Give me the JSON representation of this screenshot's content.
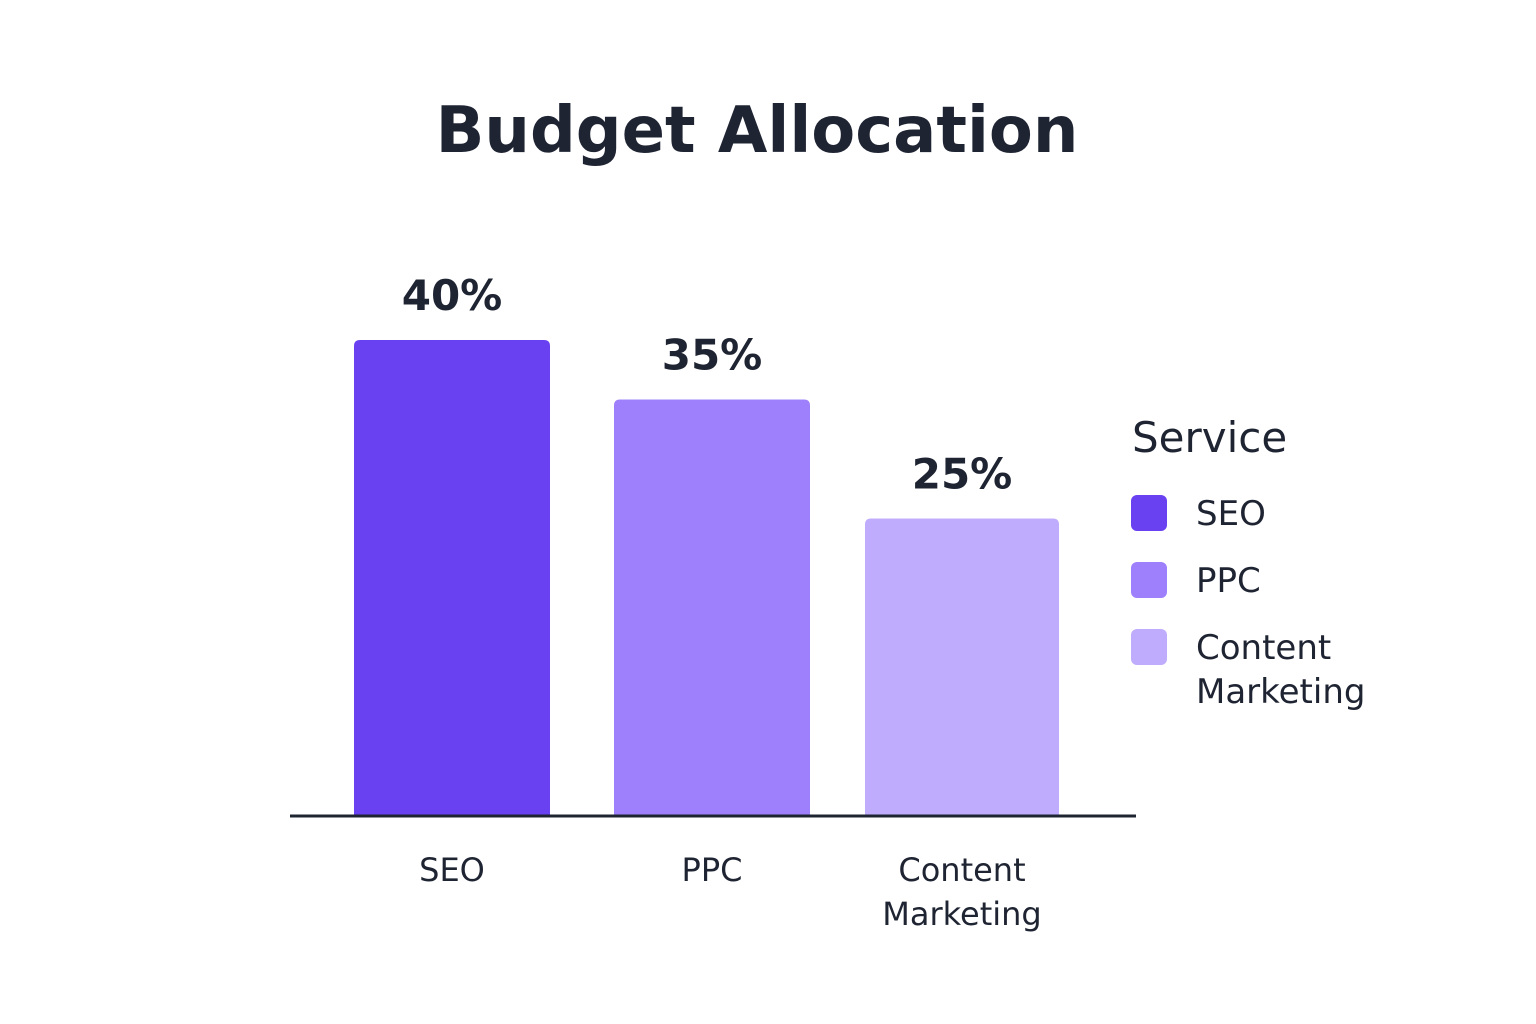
{
  "chart_data": {
    "type": "bar",
    "title": "Budget Allocation",
    "categories": [
      "SEO",
      "PPC",
      "Content Marketing"
    ],
    "values": [
      40,
      35,
      25
    ],
    "value_labels": [
      "40%",
      "35%",
      "25%"
    ],
    "unit": "%",
    "ylim": [
      0,
      45
    ],
    "grid": false,
    "legend": {
      "title": "Service",
      "placement": "right",
      "entries": [
        "SEO",
        "PPC",
        "Content Marketing"
      ]
    },
    "colors": [
      "#6a41f0",
      "#9f80fc",
      "#c0acfc"
    ]
  }
}
